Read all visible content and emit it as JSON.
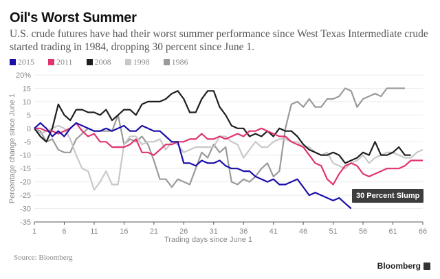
{
  "header": {
    "title": "Oil's Worst Summer",
    "subtitle": "U.S. crude futures have had their worst summer performance since West Texas Intermediate crude started trading in 1984, dropping 30 percent since June 1."
  },
  "footer": {
    "source": "Source: Bloomberg",
    "brand": "Bloomberg"
  },
  "chart_data": {
    "type": "line",
    "title": "Oil's Worst Summer",
    "xlabel": "Trading days since June 1",
    "ylabel": "Percentage change since June 1",
    "xlim": [
      1,
      66
    ],
    "ylim": [
      -35,
      20
    ],
    "x_ticks": [
      "1",
      "6",
      "11",
      "16",
      "21",
      "26",
      "31",
      "36",
      "41",
      "46",
      "51",
      "56",
      "61",
      "66"
    ],
    "y_ticks": [
      "20%",
      "15",
      "10",
      "5",
      "0",
      "-5",
      "-10",
      "-15",
      "-20",
      "-25",
      "-30",
      "-35"
    ],
    "y_tick_values": [
      20,
      15,
      10,
      5,
      0,
      -5,
      -10,
      -15,
      -20,
      -25,
      -30,
      -35
    ],
    "x_tick_values": [
      1,
      6,
      11,
      16,
      21,
      26,
      31,
      36,
      41,
      46,
      51,
      56,
      61,
      66
    ],
    "grid": true,
    "legend": "top-left",
    "annotation": {
      "text": "30 Percent Slump",
      "x": 54,
      "y": -30
    },
    "series": [
      {
        "name": "2015",
        "color": "#1a0fa8",
        "values": [
          0,
          2,
          0,
          -3,
          -1,
          -3,
          0,
          2,
          1,
          0,
          -1,
          -1,
          0,
          -1,
          0,
          1,
          -1,
          -1,
          1,
          0,
          -1,
          -1,
          -3,
          -5,
          -5,
          -13,
          -13,
          -14,
          -12,
          -13,
          -13,
          -12,
          -14,
          -15,
          -15,
          -16,
          -16,
          -18,
          -19,
          -20,
          -19,
          -21,
          -21,
          -20,
          -19,
          -22,
          -25,
          -24,
          -25,
          -26,
          -27,
          -26,
          -28,
          -30
        ]
      },
      {
        "name": "2011",
        "color": "#e0336f",
        "values": [
          0,
          0,
          -1,
          -1,
          -2,
          -1,
          0,
          2,
          -1,
          -3,
          -2,
          -5,
          -5,
          -7,
          -7,
          -7,
          -6,
          -4,
          -9,
          -9,
          -10,
          -8,
          -6,
          -6,
          -5,
          -5,
          -4,
          -4,
          -2,
          -4,
          -4,
          -3,
          -4,
          -3,
          -2,
          -3,
          -1,
          -1,
          0,
          -1,
          -2,
          -3,
          -3,
          -5,
          -6,
          -7,
          -10,
          -13,
          -14,
          -19,
          -21,
          -17,
          -14,
          -13,
          -14,
          -17,
          -18,
          -17,
          -16,
          -15,
          -15,
          -15,
          -14,
          -12,
          -12,
          -12
        ]
      },
      {
        "name": "2008",
        "color": "#1e1e1e",
        "values": [
          0,
          -3,
          -5,
          0,
          9,
          5,
          3,
          7,
          7,
          6,
          6,
          5,
          7,
          3,
          5,
          7,
          7,
          5,
          9,
          10,
          10,
          10,
          11,
          13,
          14,
          11,
          6,
          6,
          11,
          14,
          14,
          8,
          5,
          1,
          0,
          0,
          -3,
          -2,
          -3,
          -1,
          -3,
          0,
          -1,
          -1,
          -3,
          -6,
          -8,
          -9,
          -10,
          -10,
          -9,
          -10,
          -13,
          -12,
          -11,
          -9,
          -10,
          -5,
          -10,
          -10,
          -9,
          -7,
          -10,
          -10
        ]
      },
      {
        "name": "1998",
        "color": "#c8c8c8",
        "values": [
          0,
          -2,
          -1,
          0,
          1,
          0,
          -4,
          -10,
          -15,
          -16,
          -23,
          -20,
          -16,
          -21,
          -21,
          -6,
          -3,
          -3,
          -6,
          -5,
          -5,
          -4,
          -8,
          -5,
          -6,
          -9,
          -8,
          -7,
          -7,
          -7,
          -7,
          -3,
          -3,
          -5,
          -6,
          -11,
          -8,
          -5,
          -7,
          -7,
          -5,
          -4,
          -4,
          -5,
          -5,
          -7,
          -7,
          -9,
          -10,
          -9,
          -13,
          -14,
          -15,
          -13,
          -12,
          -10,
          -13,
          -11,
          -10,
          -9,
          -9,
          -10,
          -11,
          -11,
          -9,
          -8
        ]
      },
      {
        "name": "1986",
        "color": "#9a9a9a",
        "values": [
          0,
          -1,
          -5,
          -4,
          -8,
          -9,
          -9,
          -4,
          -2,
          0,
          -1,
          -1,
          -1,
          -1,
          5,
          -6,
          -4,
          -5,
          -3,
          -6,
          -12,
          -19,
          -19,
          -22,
          -19,
          -20,
          -21,
          -15,
          -9,
          -11,
          -6,
          -9,
          -7,
          -20,
          -21,
          -19,
          -20,
          -18,
          -15,
          -13,
          -18,
          -16,
          0,
          9,
          10,
          8,
          11,
          8,
          8,
          11,
          11,
          12,
          15,
          14,
          8,
          11,
          12,
          13,
          12,
          15,
          15,
          15,
          15
        ]
      }
    ]
  }
}
